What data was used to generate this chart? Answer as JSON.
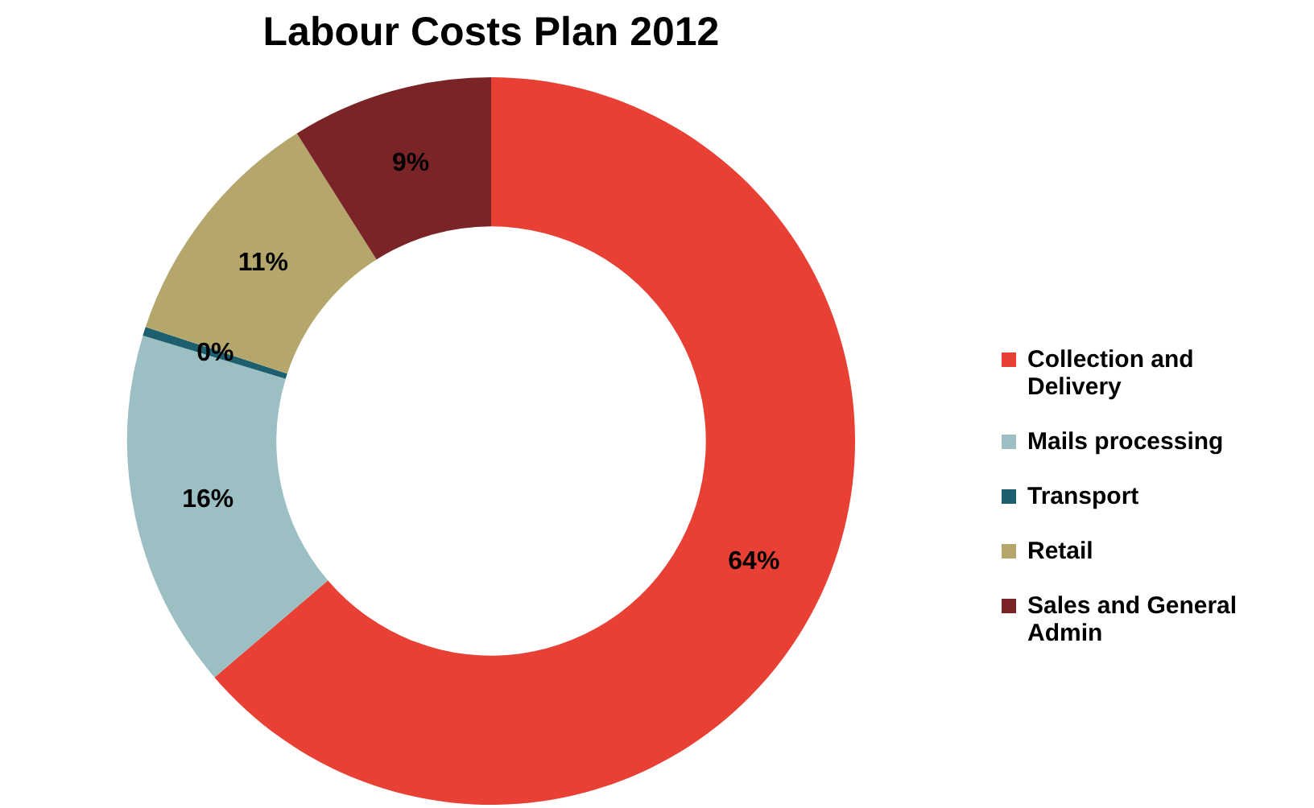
{
  "chart_data": {
    "type": "donut",
    "title": "Labour Costs Plan 2012",
    "categories": [
      "Collection and Delivery",
      "Mails processing",
      "Transport",
      "Retail",
      "Sales and General Admin"
    ],
    "values": [
      64,
      16,
      0.4,
      11,
      9
    ],
    "value_labels": [
      "64%",
      "16%",
      "0%",
      "11%",
      "9%"
    ],
    "colors": [
      "#e84034",
      "#9bbfc3",
      "#1d5f6e",
      "#b5a76b",
      "#7b2428"
    ],
    "legend": "right"
  }
}
